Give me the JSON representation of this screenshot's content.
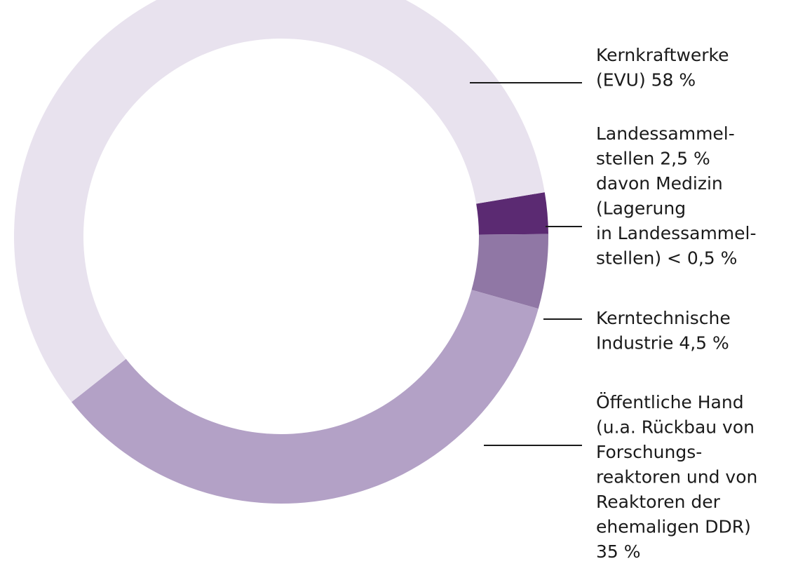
{
  "chart_data": {
    "type": "donut",
    "categories": [
      [
        "Kernkraftwerke",
        "(EVU)"
      ],
      [
        "Landessammel-",
        "stellen"
      ],
      [
        "Kerntechnische",
        "Industrie"
      ],
      [
        "Öffentliche Hand",
        "(u.a. Rückbau von",
        "Forschungs-",
        "reaktoren und von",
        "Reaktoren der",
        "ehemaligen DDR)"
      ]
    ],
    "values": [
      58,
      2.5,
      4.5,
      35
    ],
    "value_labels": [
      "58 %",
      "2,5 %",
      "4,5 %",
      "35 %"
    ],
    "colors": [
      "#e8e2ee",
      "#5b2a72",
      "#9077a5",
      "#b3a1c6"
    ],
    "annotations": [
      [
        "davon Medizin",
        "(Lagerung",
        "in Landessammel-",
        "stellen) < 0,5 %"
      ]
    ]
  }
}
